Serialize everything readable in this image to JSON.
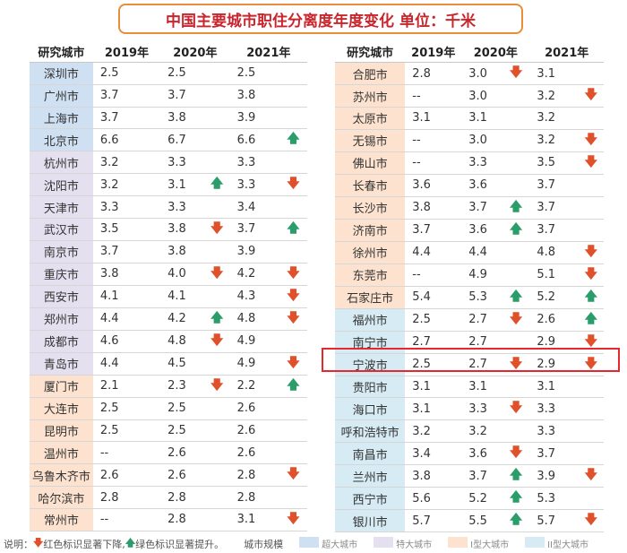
{
  "title": "中国主要城市职住分离度年度变化  单位：千米",
  "header": {
    "city": "研究城市",
    "y2019": "2019年",
    "y2020": "2020年",
    "y2021": "2021年"
  },
  "colors": {
    "super": "#cfe0f2",
    "mega": "#e4e0ef",
    "type1": "#fde3cf",
    "type2": "#d6ebf3",
    "up": "#2a9d6a",
    "down": "#e0502a"
  },
  "left_rows": [
    {
      "city": "深圳市",
      "cat": "super",
      "v2019": "2.5",
      "v2020": "2.5",
      "a2020": "",
      "v2021": "2.5",
      "a2021": ""
    },
    {
      "city": "广州市",
      "cat": "super",
      "v2019": "3.7",
      "v2020": "3.7",
      "a2020": "",
      "v2021": "3.8",
      "a2021": ""
    },
    {
      "city": "上海市",
      "cat": "super",
      "v2019": "3.7",
      "v2020": "3.8",
      "a2020": "",
      "v2021": "3.9",
      "a2021": ""
    },
    {
      "city": "北京市",
      "cat": "super",
      "v2019": "6.6",
      "v2020": "6.7",
      "a2020": "",
      "v2021": "6.6",
      "a2021": "up"
    },
    {
      "city": "杭州市",
      "cat": "mega",
      "v2019": "3.2",
      "v2020": "3.3",
      "a2020": "",
      "v2021": "3.3",
      "a2021": ""
    },
    {
      "city": "沈阳市",
      "cat": "mega",
      "v2019": "3.2",
      "v2020": "3.1",
      "a2020": "up",
      "v2021": "3.3",
      "a2021": "down"
    },
    {
      "city": "天津市",
      "cat": "mega",
      "v2019": "3.3",
      "v2020": "3.3",
      "a2020": "",
      "v2021": "3.4",
      "a2021": ""
    },
    {
      "city": "武汉市",
      "cat": "mega",
      "v2019": "3.5",
      "v2020": "3.8",
      "a2020": "down",
      "v2021": "3.7",
      "a2021": "up"
    },
    {
      "city": "南京市",
      "cat": "mega",
      "v2019": "3.7",
      "v2020": "3.8",
      "a2020": "",
      "v2021": "3.9",
      "a2021": ""
    },
    {
      "city": "重庆市",
      "cat": "mega",
      "v2019": "3.8",
      "v2020": "4.0",
      "a2020": "down",
      "v2021": "4.2",
      "a2021": "down"
    },
    {
      "city": "西安市",
      "cat": "mega",
      "v2019": "4.1",
      "v2020": "4.1",
      "a2020": "",
      "v2021": "4.3",
      "a2021": "down"
    },
    {
      "city": "郑州市",
      "cat": "mega",
      "v2019": "4.4",
      "v2020": "4.2",
      "a2020": "up",
      "v2021": "4.8",
      "a2021": "down"
    },
    {
      "city": "成都市",
      "cat": "mega",
      "v2019": "4.6",
      "v2020": "4.8",
      "a2020": "down",
      "v2021": "4.9",
      "a2021": ""
    },
    {
      "city": "青岛市",
      "cat": "mega",
      "v2019": "4.4",
      "v2020": "4.5",
      "a2020": "",
      "v2021": "4.9",
      "a2021": "down"
    },
    {
      "city": "厦门市",
      "cat": "type1",
      "v2019": "2.1",
      "v2020": "2.3",
      "a2020": "down",
      "v2021": "2.2",
      "a2021": "up"
    },
    {
      "city": "大连市",
      "cat": "type1",
      "v2019": "2.5",
      "v2020": "2.5",
      "a2020": "",
      "v2021": "2.6",
      "a2021": ""
    },
    {
      "city": "昆明市",
      "cat": "type1",
      "v2019": "2.5",
      "v2020": "2.5",
      "a2020": "",
      "v2021": "2.6",
      "a2021": ""
    },
    {
      "city": "温州市",
      "cat": "type1",
      "v2019": "--",
      "v2020": "2.6",
      "a2020": "",
      "v2021": "2.6",
      "a2021": ""
    },
    {
      "city": "乌鲁木齐市",
      "cat": "type1",
      "v2019": "2.6",
      "v2020": "2.6",
      "a2020": "",
      "v2021": "2.8",
      "a2021": "down"
    },
    {
      "city": "哈尔滨市",
      "cat": "type1",
      "v2019": "2.8",
      "v2020": "2.8",
      "a2020": "",
      "v2021": "2.8",
      "a2021": ""
    },
    {
      "city": "常州市",
      "cat": "type1",
      "v2019": "--",
      "v2020": "2.8",
      "a2020": "",
      "v2021": "3.1",
      "a2021": "down"
    }
  ],
  "right_rows": [
    {
      "city": "合肥市",
      "cat": "type1",
      "v2019": "2.8",
      "v2020": "3.0",
      "a2020": "down",
      "v2021": "3.1",
      "a2021": ""
    },
    {
      "city": "苏州市",
      "cat": "type1",
      "v2019": "--",
      "v2020": "3.0",
      "a2020": "",
      "v2021": "3.2",
      "a2021": "down"
    },
    {
      "city": "太原市",
      "cat": "type1",
      "v2019": "3.1",
      "v2020": "3.1",
      "a2020": "",
      "v2021": "3.2",
      "a2021": ""
    },
    {
      "city": "无锡市",
      "cat": "type1",
      "v2019": "--",
      "v2020": "3.0",
      "a2020": "",
      "v2021": "3.2",
      "a2021": "down"
    },
    {
      "city": "佛山市",
      "cat": "type1",
      "v2019": "--",
      "v2020": "3.3",
      "a2020": "",
      "v2021": "3.5",
      "a2021": "down"
    },
    {
      "city": "长春市",
      "cat": "type1",
      "v2019": "3.6",
      "v2020": "3.6",
      "a2020": "",
      "v2021": "3.7",
      "a2021": ""
    },
    {
      "city": "长沙市",
      "cat": "type1",
      "v2019": "3.8",
      "v2020": "3.7",
      "a2020": "up",
      "v2021": "3.7",
      "a2021": ""
    },
    {
      "city": "济南市",
      "cat": "type1",
      "v2019": "3.7",
      "v2020": "3.6",
      "a2020": "up",
      "v2021": "3.7",
      "a2021": ""
    },
    {
      "city": "徐州市",
      "cat": "type1",
      "v2019": "4.4",
      "v2020": "4.4",
      "a2020": "",
      "v2021": "4.8",
      "a2021": "down"
    },
    {
      "city": "东莞市",
      "cat": "type1",
      "v2019": "--",
      "v2020": "4.9",
      "a2020": "",
      "v2021": "5.1",
      "a2021": "down"
    },
    {
      "city": "石家庄市",
      "cat": "type1",
      "v2019": "5.4",
      "v2020": "5.3",
      "a2020": "up",
      "v2021": "5.2",
      "a2021": "up"
    },
    {
      "city": "福州市",
      "cat": "type2",
      "v2019": "2.5",
      "v2020": "2.7",
      "a2020": "down",
      "v2021": "2.6",
      "a2021": "up"
    },
    {
      "city": "南宁市",
      "cat": "type2",
      "v2019": "2.7",
      "v2020": "2.7",
      "a2020": "",
      "v2021": "2.9",
      "a2021": "down"
    },
    {
      "city": "宁波市",
      "cat": "type2",
      "v2019": "2.5",
      "v2020": "2.7",
      "a2020": "down",
      "v2021": "2.9",
      "a2021": "down"
    },
    {
      "city": "贵阳市",
      "cat": "type2",
      "v2019": "3.1",
      "v2020": "3.1",
      "a2020": "",
      "v2021": "3.1",
      "a2021": ""
    },
    {
      "city": "海口市",
      "cat": "type2",
      "v2019": "3.1",
      "v2020": "3.3",
      "a2020": "down",
      "v2021": "3.3",
      "a2021": ""
    },
    {
      "city": "呼和浩特市",
      "cat": "type2",
      "v2019": "3.2",
      "v2020": "3.2",
      "a2020": "",
      "v2021": "3.3",
      "a2021": ""
    },
    {
      "city": "南昌市",
      "cat": "type2",
      "v2019": "3.4",
      "v2020": "3.6",
      "a2020": "down",
      "v2021": "3.7",
      "a2021": ""
    },
    {
      "city": "兰州市",
      "cat": "type2",
      "v2019": "3.8",
      "v2020": "3.7",
      "a2020": "up",
      "v2021": "3.9",
      "a2021": "down"
    },
    {
      "city": "西宁市",
      "cat": "type2",
      "v2019": "5.6",
      "v2020": "5.2",
      "a2020": "up",
      "v2021": "5.3",
      "a2021": ""
    },
    {
      "city": "银川市",
      "cat": "type2",
      "v2019": "5.7",
      "v2020": "5.5",
      "a2020": "up",
      "v2021": "5.7",
      "a2021": "down"
    }
  ],
  "footer": {
    "prefix": "说明：",
    "red_note": "红色标识显著下降,",
    "green_note": "绿色标识显著提升。",
    "scale_label": "城市规模",
    "legend": [
      {
        "cat": "super",
        "label": "超大城市"
      },
      {
        "cat": "mega",
        "label": "特大城市"
      },
      {
        "cat": "type1",
        "label": "I型大城市"
      },
      {
        "cat": "type2",
        "label": "II型大城市"
      }
    ]
  }
}
